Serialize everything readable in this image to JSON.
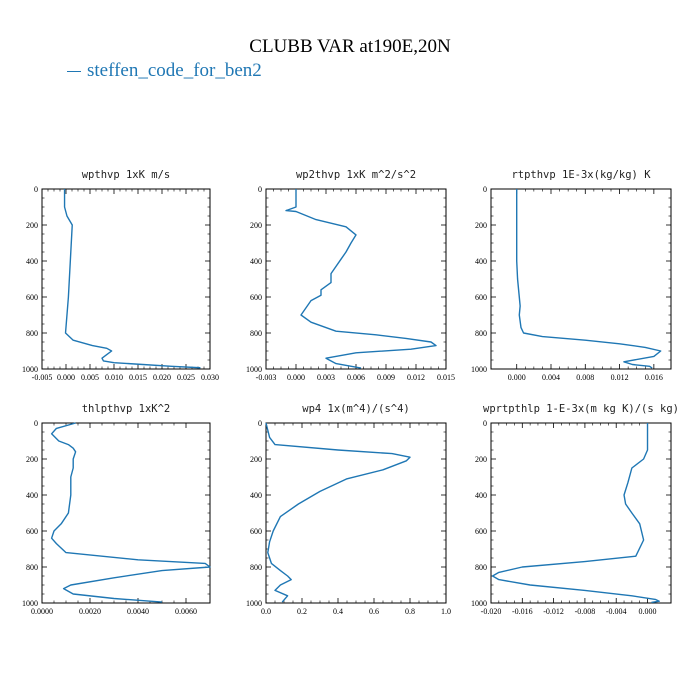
{
  "title": "CLUBB VAR at190E,20N",
  "legend": {
    "label": "steffen_code_for_ben2",
    "color": "#1f77b4"
  },
  "colors": {
    "line": "#1f77b4",
    "axis": "#000000"
  },
  "chart_data": [
    {
      "type": "line",
      "title": "wpthvp  1xK m/s",
      "xlim": [
        -0.005,
        0.03
      ],
      "ylim": [
        0,
        1000
      ],
      "y_reversed": true,
      "xticks": [
        "-0.005",
        "0.000",
        "0.005",
        "0.010",
        "0.015",
        "0.020",
        "0.025",
        "0.030"
      ],
      "yticks": [
        "0",
        "200",
        "400",
        "600",
        "800",
        "1000"
      ],
      "series": [
        {
          "x": [
            -0.0003,
            -0.0003,
            0.0002,
            0.0013,
            0.0012,
            0.0011,
            0.001,
            0.0009,
            0.0008,
            0.0007,
            0.0006,
            0.0005,
            -0.0001,
            0.0015,
            0.0055,
            0.0085,
            0.0095,
            0.0085,
            0.0075,
            0.0078,
            0.01,
            0.016,
            0.022,
            0.028
          ],
          "y": [
            0,
            100,
            150,
            200,
            250,
            300,
            350,
            400,
            450,
            500,
            550,
            600,
            800,
            840,
            870,
            885,
            900,
            920,
            940,
            955,
            965,
            975,
            985,
            993
          ]
        }
      ]
    },
    {
      "type": "line",
      "title": "wp2thvp  1xK m^2/s^2",
      "xlim": [
        -0.003,
        0.015
      ],
      "ylim": [
        0,
        1000
      ],
      "y_reversed": true,
      "xticks": [
        "-0.003",
        "0.000",
        "0.003",
        "0.006",
        "0.009",
        "0.012",
        "0.015"
      ],
      "yticks": [
        "0",
        "200",
        "400",
        "600",
        "800",
        "1000"
      ],
      "series": [
        {
          "x": [
            0.0,
            0.0,
            -0.001,
            0.0,
            0.002,
            0.005,
            0.006,
            0.0055,
            0.005,
            0.0045,
            0.0035,
            0.0035,
            0.0025,
            0.0025,
            0.0015,
            0.0005,
            0.0015,
            0.004,
            0.008,
            0.011,
            0.0135,
            0.014,
            0.0115,
            0.006,
            0.003,
            0.004,
            0.0065
          ],
          "y": [
            0,
            100,
            120,
            125,
            170,
            210,
            255,
            300,
            350,
            390,
            470,
            520,
            560,
            590,
            620,
            700,
            740,
            790,
            810,
            830,
            850,
            870,
            890,
            910,
            940,
            970,
            995
          ]
        }
      ]
    },
    {
      "type": "line",
      "title": "rtpthvp  1E-3x(kg/kg) K",
      "xlim": [
        -0.003,
        0.018
      ],
      "ylim": [
        0,
        1000
      ],
      "y_reversed": true,
      "xticks": [
        "0.000",
        "0.004",
        "0.008",
        "0.012",
        "0.016"
      ],
      "xtick_values": [
        0.0,
        0.004,
        0.008,
        0.012,
        0.016
      ],
      "yticks": [
        "0",
        "200",
        "400",
        "600",
        "800",
        "1000"
      ],
      "series": [
        {
          "x": [
            0.0,
            0.0,
            0.0,
            0.0001,
            0.0002,
            0.0003,
            0.0004,
            0.0003,
            0.0005,
            0.0008,
            0.003,
            0.008,
            0.012,
            0.015,
            0.0168,
            0.016,
            0.0125,
            0.0135,
            0.0155,
            0.0158
          ],
          "y": [
            0,
            200,
            400,
            500,
            550,
            600,
            650,
            700,
            770,
            800,
            820,
            840,
            860,
            880,
            900,
            930,
            960,
            975,
            985,
            995
          ]
        }
      ]
    },
    {
      "type": "line",
      "title": "thlpthvp  1xK^2",
      "xlim": [
        0.0,
        0.007
      ],
      "ylim": [
        0,
        1000
      ],
      "y_reversed": true,
      "xticks": [
        "0.0000",
        "0.0020",
        "0.0040",
        "0.0060"
      ],
      "xtick_values": [
        0.0,
        0.002,
        0.004,
        0.006
      ],
      "yticks": [
        "0",
        "200",
        "400",
        "600",
        "800",
        "1000"
      ],
      "series": [
        {
          "x": [
            0.0014,
            0.0006,
            0.0004,
            0.0007,
            0.0011,
            0.0013,
            0.0014,
            0.0013,
            0.0013,
            0.0012,
            0.0012,
            0.0012,
            0.0011,
            0.0008,
            0.0005,
            0.0004,
            0.0006,
            0.001,
            0.004,
            0.0068,
            0.007,
            0.005,
            0.003,
            0.0012,
            0.0009,
            0.0013,
            0.003,
            0.005
          ],
          "y": [
            0,
            30,
            60,
            100,
            120,
            140,
            160,
            200,
            250,
            300,
            350,
            400,
            500,
            560,
            600,
            640,
            670,
            720,
            760,
            780,
            800,
            820,
            860,
            900,
            920,
            950,
            975,
            995
          ]
        }
      ]
    },
    {
      "type": "line",
      "title": "wp4  1x(m^4)/(s^4)",
      "xlim": [
        0.0,
        1.0
      ],
      "ylim": [
        0,
        1000
      ],
      "y_reversed": true,
      "xticks": [
        "0.0",
        "0.2",
        "0.4",
        "0.6",
        "0.8",
        "1.0"
      ],
      "yticks": [
        "0",
        "200",
        "400",
        "600",
        "800",
        "1000"
      ],
      "series": [
        {
          "x": [
            0.0,
            0.02,
            0.05,
            0.4,
            0.7,
            0.8,
            0.78,
            0.65,
            0.45,
            0.3,
            0.18,
            0.08,
            0.04,
            0.02,
            0.01,
            0.03,
            0.08,
            0.12,
            0.14,
            0.08,
            0.05,
            0.12,
            0.09
          ],
          "y": [
            0,
            80,
            120,
            150,
            170,
            190,
            210,
            260,
            310,
            380,
            450,
            520,
            600,
            660,
            720,
            780,
            820,
            850,
            870,
            900,
            930,
            960,
            995
          ]
        }
      ]
    },
    {
      "type": "line",
      "title": "wprtpthlp  1-E-3x(m kg K)/(s kg)",
      "xlim": [
        -0.02,
        0.003
      ],
      "ylim": [
        0,
        1000
      ],
      "y_reversed": true,
      "xticks": [
        "-0.020",
        "-0.016",
        "-0.012",
        "-0.008",
        "-0.004",
        "0.000"
      ],
      "xtick_values": [
        -0.02,
        -0.016,
        -0.012,
        -0.008,
        -0.004,
        0.0
      ],
      "yticks": [
        "0",
        "200",
        "400",
        "600",
        "800",
        "1000"
      ],
      "series": [
        {
          "x": [
            0.0,
            0.0,
            -0.0005,
            -0.002,
            -0.0025,
            -0.003,
            -0.0028,
            -0.002,
            -0.001,
            -0.0005,
            -0.0015,
            -0.008,
            -0.016,
            -0.019,
            -0.0198,
            -0.019,
            -0.015,
            -0.008,
            -0.002,
            0.001,
            0.0015,
            0.0005
          ],
          "y": [
            0,
            150,
            200,
            250,
            330,
            400,
            450,
            500,
            560,
            650,
            740,
            770,
            800,
            830,
            850,
            870,
            900,
            930,
            960,
            980,
            990,
            997
          ]
        }
      ]
    }
  ]
}
